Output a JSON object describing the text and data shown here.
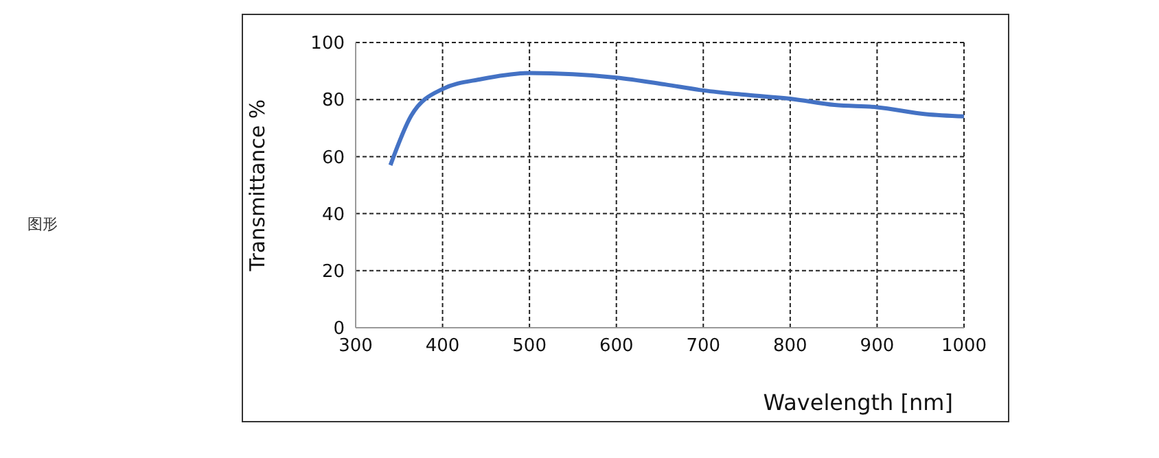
{
  "chart_data": {
    "type": "line",
    "xlabel": "Wavelength [nm]",
    "ylabel": "Transmittance %",
    "annotations": [
      "图形"
    ],
    "x": [
      340,
      364,
      400,
      445,
      500,
      600,
      656,
      700,
      751,
      800,
      851,
      900,
      956,
      1000
    ],
    "series": [
      {
        "color": "#4472c4",
        "values": [
          57,
          74.4,
          83.7,
          87.2,
          89.3,
          87.7,
          85.3,
          83.2,
          81.6,
          80.3,
          78.1,
          77.3,
          74.9,
          74.1
        ]
      }
    ],
    "xlim": [
      300,
      1000
    ],
    "xticks": [
      300,
      400,
      500,
      600,
      700,
      800,
      900,
      1000
    ],
    "ylim": [
      0,
      100
    ],
    "yticks": [
      0,
      20,
      40,
      60,
      80,
      100
    ],
    "grid": true,
    "marker": "none",
    "line_style": "solid"
  }
}
